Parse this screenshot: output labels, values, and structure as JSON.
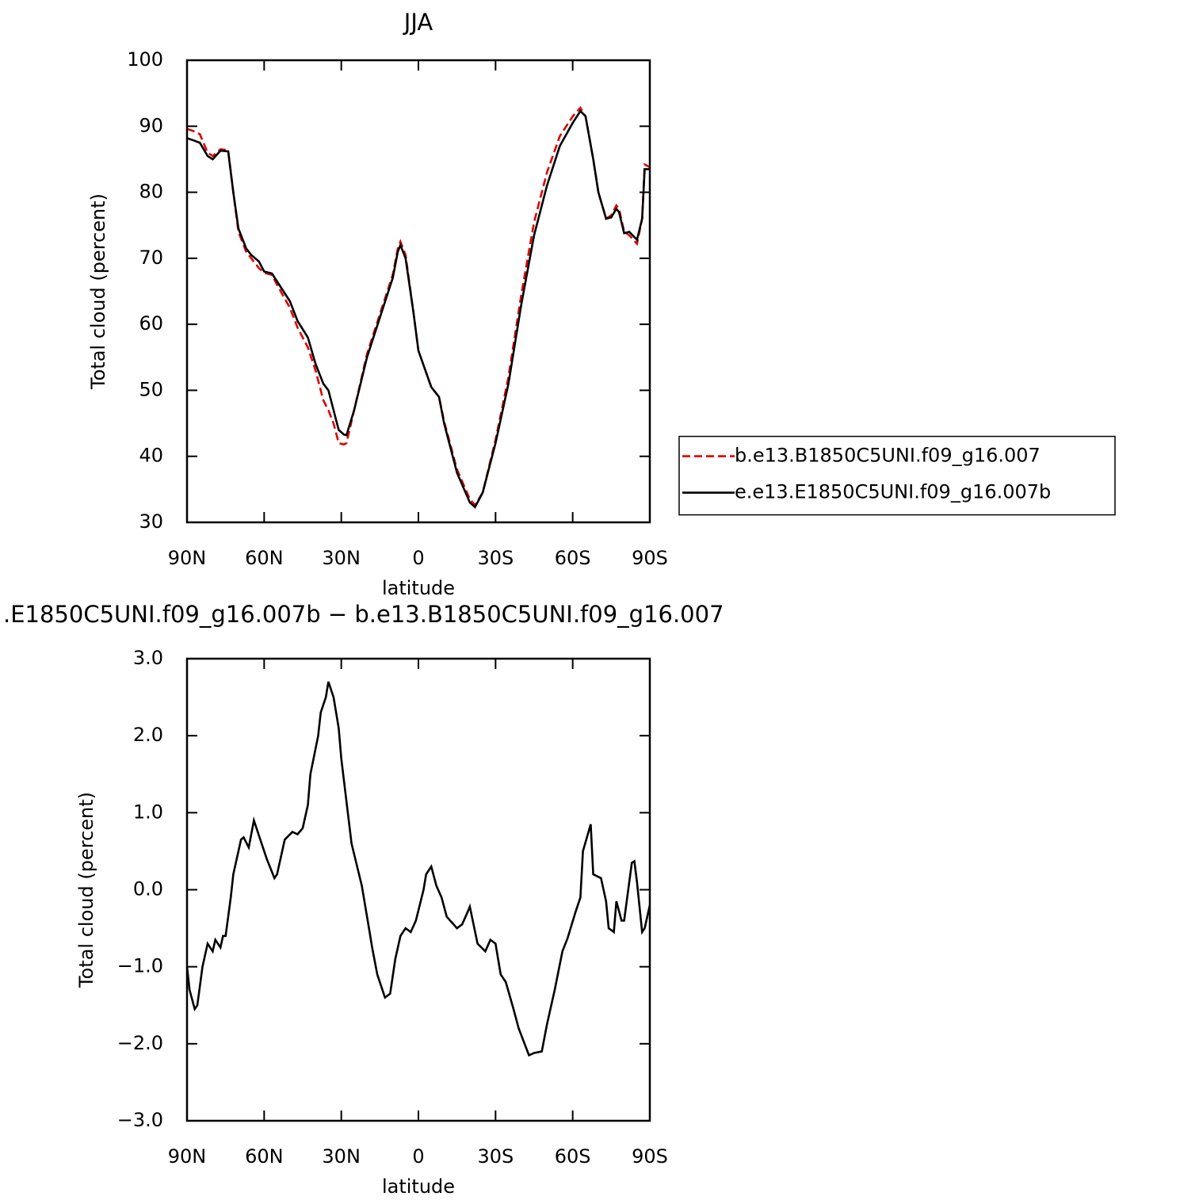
{
  "chart_data": [
    {
      "type": "line",
      "title": "JJA",
      "x_label": "latitude",
      "y_label": "Total cloud (percent)",
      "x": [
        90,
        87,
        85,
        82,
        80,
        77,
        74,
        72,
        70,
        67,
        65,
        62,
        60,
        57,
        55,
        50,
        47,
        43,
        40,
        37,
        35,
        33,
        31,
        29,
        28,
        25,
        20,
        15,
        10,
        8,
        7,
        5,
        2,
        0,
        -5,
        -8,
        -10,
        -15,
        -20,
        -22,
        -25,
        -30,
        -35,
        -40,
        -45,
        -50,
        -55,
        -60,
        -63,
        -65,
        -68,
        -70,
        -73,
        -75,
        -77,
        -78,
        -80,
        -82,
        -85,
        -87,
        -88,
        -90
      ],
      "series": [
        {
          "name": "b.e13.B1850C5UNI.f09_g16.007",
          "color": "#e00000",
          "line_style": "dashed",
          "values": [
            89.6,
            89.2,
            88.8,
            86,
            85.5,
            86.5,
            86.4,
            80,
            74,
            71,
            70,
            68.5,
            67.8,
            67.5,
            66,
            62.5,
            59.5,
            56.5,
            53,
            48.5,
            47,
            45,
            42,
            41.8,
            42,
            47,
            55.5,
            61.5,
            67.5,
            71.5,
            72.5,
            70.5,
            62,
            56,
            50.5,
            49,
            45.3,
            38,
            33.5,
            32.6,
            34.5,
            42.5,
            52,
            64.5,
            75.5,
            83,
            88.5,
            91.5,
            92.8,
            91.5,
            85,
            80,
            76,
            76.5,
            78,
            77.5,
            74,
            73.5,
            72.2,
            76,
            84.2,
            83.8
          ]
        },
        {
          "name": "e.e13.E1850C5UNI.f09_g16.007b",
          "color": "#000000",
          "line_style": "solid",
          "values": [
            88.2,
            87.8,
            87.5,
            85.5,
            85.0,
            86.3,
            86.2,
            80,
            74.5,
            71.5,
            70.5,
            69.5,
            68,
            67.7,
            66.5,
            63.5,
            60.5,
            58,
            54,
            51,
            50,
            47,
            44,
            43.3,
            43.2,
            47,
            55,
            61,
            67,
            71,
            72,
            70,
            62,
            56,
            50.5,
            49,
            45,
            37.5,
            33,
            32.3,
            34.5,
            42,
            51,
            63,
            73.5,
            81,
            87,
            90.5,
            92.3,
            91.5,
            85,
            80,
            76,
            76.2,
            77.5,
            77,
            73.8,
            74,
            72.8,
            76,
            83.5,
            83.5
          ]
        }
      ],
      "xlim": [
        90,
        -90
      ],
      "xticks": [
        {
          "value": 90,
          "label": "90N"
        },
        {
          "value": 60,
          "label": "60N"
        },
        {
          "value": 30,
          "label": "30N"
        },
        0,
        {
          "value": -30,
          "label": "30S"
        },
        {
          "value": -60,
          "label": "60S"
        },
        {
          "value": -90,
          "label": "90S"
        }
      ],
      "ylim": [
        30,
        100
      ],
      "yticks": [
        30,
        40,
        50,
        60,
        70,
        80,
        90,
        100
      ],
      "legend": "right"
    },
    {
      "type": "line",
      "title": ".E1850C5UNI.f09_g16.007b − b.e13.B1850C5UNI.f09_g16.007",
      "x_label": "latitude",
      "y_label": "Total cloud (percent)",
      "x": [
        90,
        89,
        87,
        86,
        84,
        82,
        80,
        79,
        77,
        76,
        75,
        73,
        72,
        69,
        68,
        66,
        64,
        61,
        59,
        56,
        55,
        52,
        49,
        47,
        45,
        43,
        42,
        39,
        38,
        36,
        35,
        33,
        31,
        30,
        26,
        22,
        19,
        18,
        16,
        13,
        11,
        9,
        7,
        5,
        3,
        1,
        -2,
        -3,
        -5,
        -7,
        -9,
        -11,
        -15,
        -17,
        -19,
        -20,
        -23,
        -26,
        -28,
        -30,
        -32,
        -34,
        -37,
        -39,
        -43,
        -45,
        -48,
        -50,
        -53,
        -56,
        -58,
        -61,
        -63,
        -64,
        -67,
        -68,
        -71,
        -73,
        -74,
        -76,
        -77,
        -79,
        -80,
        -83,
        -84,
        -85,
        -87,
        -88,
        -90
      ],
      "values": [
        -1.0,
        -1.3,
        -1.55,
        -1.5,
        -1.0,
        -0.7,
        -0.8,
        -0.65,
        -0.75,
        -0.6,
        -0.6,
        -0.1,
        0.2,
        0.65,
        0.68,
        0.55,
        0.9,
        0.6,
        0.4,
        0.15,
        0.2,
        0.65,
        0.75,
        0.72,
        0.8,
        1.1,
        1.5,
        2.0,
        2.3,
        2.5,
        2.7,
        2.5,
        2.1,
        1.7,
        0.6,
        0.05,
        -0.55,
        -0.75,
        -1.1,
        -1.4,
        -1.35,
        -0.9,
        -0.6,
        -0.5,
        -0.55,
        -0.4,
        0.0,
        0.2,
        0.3,
        0.05,
        -0.1,
        -0.35,
        -0.5,
        -0.45,
        -0.3,
        -0.22,
        -0.7,
        -0.8,
        -0.65,
        -0.7,
        -1.1,
        -1.2,
        -1.55,
        -1.8,
        -2.15,
        -2.12,
        -2.1,
        -1.75,
        -1.3,
        -0.8,
        -0.63,
        -0.3,
        -0.1,
        0.5,
        0.85,
        0.2,
        0.15,
        -0.15,
        -0.5,
        -0.55,
        -0.15,
        -0.4,
        -0.4,
        0.35,
        0.37,
        0.1,
        -0.55,
        -0.5,
        -0.2
      ],
      "color": "#000000",
      "line_style": "solid",
      "xlim": [
        90,
        -90
      ],
      "xticks": [
        {
          "value": 90,
          "label": "90N"
        },
        {
          "value": 60,
          "label": "60N"
        },
        {
          "value": 30,
          "label": "30N"
        },
        0,
        {
          "value": -30,
          "label": "30S"
        },
        {
          "value": -60,
          "label": "60S"
        },
        {
          "value": -90,
          "label": "90S"
        }
      ],
      "ylim": [
        -3,
        3
      ],
      "yticks": [
        {
          "value": -3,
          "label": "−3.0"
        },
        {
          "value": -2,
          "label": "−2.0"
        },
        {
          "value": -1,
          "label": "−1.0"
        },
        {
          "value": 0,
          "label": "0.0"
        },
        {
          "value": 1,
          "label": "1.0"
        },
        {
          "value": 2,
          "label": "2.0"
        },
        {
          "value": 3,
          "label": "3.0"
        }
      ]
    }
  ]
}
